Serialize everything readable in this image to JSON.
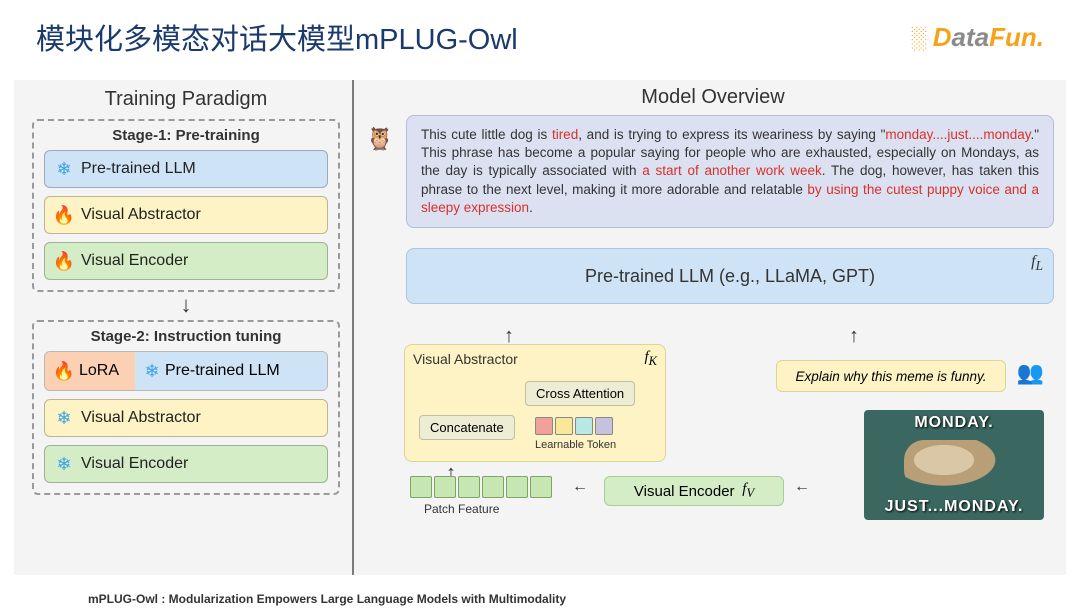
{
  "title": "模块化多模态对话大模型mPLUG-Owl",
  "logo": {
    "pre": "D",
    "mid": "ata",
    "post": "Fun",
    "dot": "."
  },
  "citation": "mPLUG-Owl : Modularization Empowers Large Language Models with Multimodality",
  "colors": {
    "blue_block": "#cfe3f7",
    "yellow_block": "#fdf3c4",
    "green_block": "#d5edc7",
    "lora_block": "#fbd0b3",
    "output_bg": "#dce1f2",
    "snow_icon": "#3ca3e8",
    "fire_icon": "#f05a28",
    "red_text": "#d9302a",
    "title_color": "#1a3a6e",
    "border_dash": "#9a9a9a",
    "learnable_tokens": [
      "#f2a19a",
      "#f9e89a",
      "#b7e8e4",
      "#c5c1de"
    ],
    "patch_color": "#c6e6b3",
    "meme_bg": "#3a6861"
  },
  "left": {
    "title": "Training Paradigm",
    "stage1": {
      "label": "Stage-1: Pre-training",
      "blocks": [
        {
          "icon": "snow",
          "color": "blue",
          "text": "Pre-trained  LLM"
        },
        {
          "icon": "fire",
          "color": "yellow",
          "text": "Visual Abstractor"
        },
        {
          "icon": "fire",
          "color": "green",
          "text": "Visual Encoder"
        }
      ]
    },
    "stage2": {
      "label": "Stage-2: Instruction tuning",
      "lora": {
        "lora_text": "LoRA",
        "pllm_text": "Pre-trained  LLM"
      },
      "blocks": [
        {
          "icon": "snow",
          "color": "yellow",
          "text": "Visual Abstractor"
        },
        {
          "icon": "snow",
          "color": "green",
          "text": "Visual Encoder"
        }
      ]
    }
  },
  "right": {
    "title": "Model Overview",
    "output_segments": [
      {
        "t": "This cute little dog is ",
        "red": false
      },
      {
        "t": "tired",
        "red": true
      },
      {
        "t": ", and is trying to express its weariness by saying \"",
        "red": false
      },
      {
        "t": "monday....just....monday",
        "red": true
      },
      {
        "t": ".\" This phrase has become a popular saying for people who are exhausted, especially on Mondays, as the day is typically associated with ",
        "red": false
      },
      {
        "t": "a start of another work week",
        "red": true
      },
      {
        "t": ". The dog, however, has taken this phrase to the next level, making it more adorable and relatable ",
        "red": false
      },
      {
        "t": "by using the cutest puppy voice and a sleepy expression",
        "red": true
      },
      {
        "t": ".",
        "red": false
      }
    ],
    "llm": {
      "text": "Pre-trained  LLM (e.g., LLaMA, GPT)",
      "symbol": "f_L"
    },
    "va": {
      "title": "Visual Abstractor",
      "symbol": "f_K",
      "concat": "Concatenate",
      "cross": "Cross Attention",
      "token_label": "Learnable Token"
    },
    "patch_label": "Patch Feature",
    "ve": {
      "text": "Visual Encoder",
      "symbol": "f_V"
    },
    "prompt": "Explain why this meme is funny.",
    "meme": {
      "top": "MONDAY.",
      "bottom": "JUST...MONDAY."
    }
  }
}
